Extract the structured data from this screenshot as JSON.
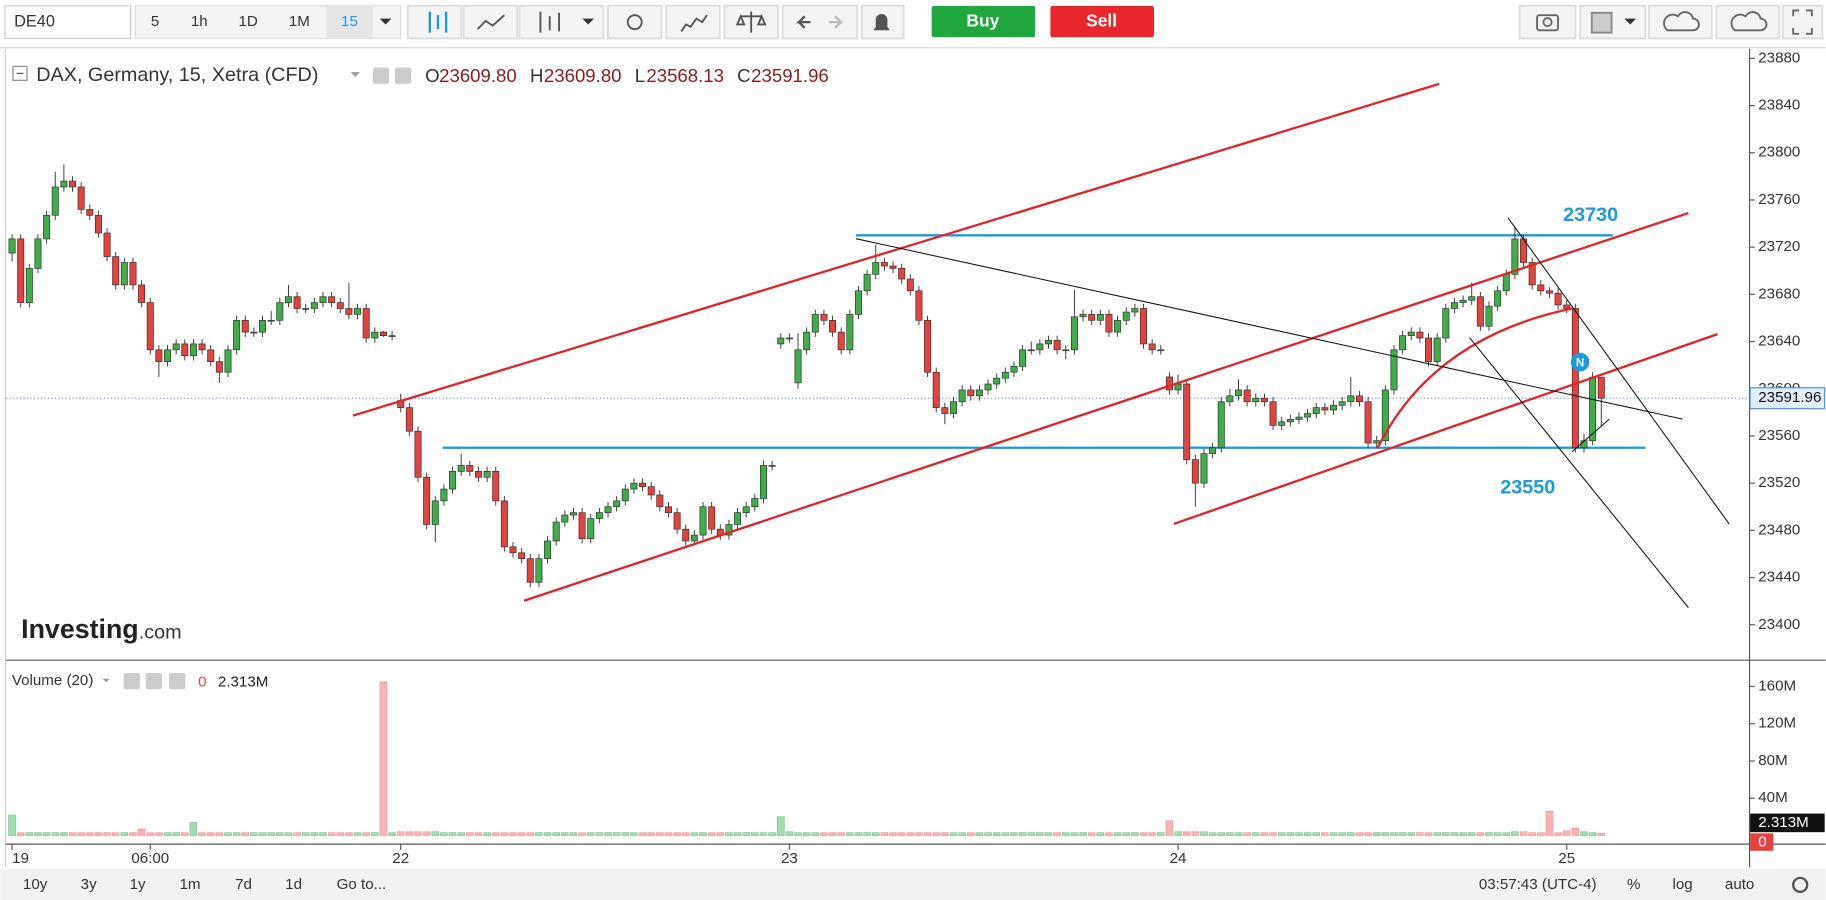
{
  "toolbar": {
    "symbol": "DE40",
    "intervals": [
      "5",
      "1h",
      "1D",
      "1M",
      "15"
    ],
    "buy": "Buy",
    "sell": "Sell"
  },
  "legend": {
    "title": "DAX, Germany, 15, Xetra (CFD)",
    "o_label": "O",
    "o": "23609.80",
    "h_label": "H",
    "h": "23609.80",
    "l_label": "L",
    "l": "23568.13",
    "c_label": "C",
    "c": "23591.96"
  },
  "watermark": {
    "brand": "Investing",
    "suffix": ".com"
  },
  "volume_legend": {
    "title": "Volume (20)",
    "value_zero": "0"
  },
  "footer": {
    "ranges": [
      "10y",
      "3y",
      "1y",
      "1m",
      "7d",
      "1d"
    ],
    "goto": "Go to...",
    "clock": "03:57:43 (UTC-4)",
    "options": [
      "%",
      "log",
      "auto"
    ]
  },
  "chart_data": {
    "type": "candlestick",
    "up_color": "#3fae49",
    "down_color": "#e5423f",
    "volume_up_color": "#a5dcb3",
    "volume_down_color": "#f7b4b4",
    "level_color": "#1a9be0",
    "xlim": [
      -0.7,
      201.1
    ],
    "xticks": [
      {
        "value": 0,
        "label": "19"
      },
      {
        "value": 16,
        "label": "06:00"
      },
      {
        "value": 45,
        "label": "22"
      },
      {
        "value": 90,
        "label": "23"
      },
      {
        "value": 135,
        "label": "24"
      },
      {
        "value": 180,
        "label": "25"
      }
    ],
    "ylim": [
      23371,
      23888
    ],
    "yticks": [
      23400,
      23440,
      23480,
      23520,
      23560,
      23600,
      23640,
      23680,
      23720,
      23760,
      23800,
      23840,
      23880
    ],
    "vlim": [
      -8,
      187
    ],
    "vticks": [
      {
        "value": 40,
        "label": "40M"
      },
      {
        "value": 80,
        "label": "80M"
      },
      {
        "value": 120,
        "label": "120M"
      },
      {
        "value": 160,
        "label": "160M"
      }
    ],
    "last_price": {
      "value": 23591.96,
      "label": "23591.96"
    },
    "last_volume": {
      "value": 2.313,
      "label": "2.313M"
    },
    "levels": [
      23730,
      23550
    ],
    "candles": [
      [
        23715,
        23731,
        23708,
        23727
      ],
      [
        23727,
        23731,
        23669,
        23673
      ],
      [
        23673,
        23706,
        23669,
        23702
      ],
      [
        23702,
        23731,
        23698,
        23727
      ],
      [
        23727,
        23751,
        23723,
        23747
      ],
      [
        23747,
        23784,
        23743,
        23771
      ],
      [
        23771,
        23790,
        23767,
        23776
      ],
      [
        23776,
        23780,
        23767,
        23771
      ],
      [
        23771,
        23775,
        23748,
        23752
      ],
      [
        23752,
        23756,
        23743,
        23747
      ],
      [
        23747,
        23751,
        23728,
        23732
      ],
      [
        23732,
        23736,
        23708,
        23712
      ],
      [
        23712,
        23716,
        23684,
        23688
      ],
      [
        23688,
        23711,
        23684,
        23707
      ],
      [
        23707,
        23711,
        23684,
        23688
      ],
      [
        23688,
        23692,
        23669,
        23673
      ],
      [
        23673,
        23677,
        23629,
        23633
      ],
      [
        23633,
        23637,
        23610,
        23623
      ],
      [
        23623,
        23637,
        23619,
        23633
      ],
      [
        23633,
        23642,
        23629,
        23638
      ],
      [
        23638,
        23642,
        23624,
        23628
      ],
      [
        23628,
        23642,
        23624,
        23638
      ],
      [
        23638,
        23642,
        23629,
        23633
      ],
      [
        23633,
        23637,
        23619,
        23623
      ],
      [
        23623,
        23627,
        23605,
        23614
      ],
      [
        23614,
        23637,
        23610,
        23633
      ],
      [
        23633,
        23662,
        23629,
        23658
      ],
      [
        23658,
        23662,
        23644,
        23648
      ],
      [
        23648,
        23652,
        23644,
        23648
      ],
      [
        23648,
        23662,
        23644,
        23658
      ],
      [
        23658,
        23666,
        23654,
        23658
      ],
      [
        23658,
        23677,
        23654,
        23673
      ],
      [
        23673,
        23688,
        23669,
        23678
      ],
      [
        23678,
        23682,
        23664,
        23668
      ],
      [
        23668,
        23672,
        23664,
        23668
      ],
      [
        23668,
        23677,
        23664,
        23673
      ],
      [
        23673,
        23682,
        23669,
        23678
      ],
      [
        23678,
        23682,
        23669,
        23673
      ],
      [
        23673,
        23677,
        23664,
        23668
      ],
      [
        23668,
        23690,
        23659,
        23663
      ],
      [
        23663,
        23672,
        23659,
        23668
      ],
      [
        23668,
        23672,
        23639,
        23643
      ],
      [
        23643,
        23652,
        23639,
        23648
      ],
      [
        23648,
        23649,
        23644,
        23645
      ],
      [
        23645,
        23649,
        23641,
        23645
      ],
      [
        23590,
        23596,
        23580,
        23584
      ],
      [
        23584,
        23588,
        23560,
        23564
      ],
      [
        23564,
        23568,
        23521,
        23525
      ],
      [
        23525,
        23529,
        23481,
        23485
      ],
      [
        23485,
        23509,
        23470,
        23505
      ],
      [
        23505,
        23519,
        23501,
        23515
      ],
      [
        23515,
        23534,
        23511,
        23530
      ],
      [
        23530,
        23545,
        23526,
        23535
      ],
      [
        23535,
        23539,
        23526,
        23530
      ],
      [
        23530,
        23534,
        23521,
        23525
      ],
      [
        23525,
        23534,
        23521,
        23530
      ],
      [
        23530,
        23534,
        23501,
        23505
      ],
      [
        23505,
        23509,
        23462,
        23466
      ],
      [
        23466,
        23470,
        23457,
        23461
      ],
      [
        23461,
        23465,
        23452,
        23456
      ],
      [
        23456,
        23460,
        23432,
        23436
      ],
      [
        23436,
        23460,
        23432,
        23456
      ],
      [
        23456,
        23475,
        23452,
        23471
      ],
      [
        23471,
        23491,
        23467,
        23487
      ],
      [
        23487,
        23497,
        23483,
        23493
      ],
      [
        23493,
        23499,
        23489,
        23495
      ],
      [
        23495,
        23499,
        23469,
        23473
      ],
      [
        23473,
        23494,
        23469,
        23490
      ],
      [
        23490,
        23499,
        23486,
        23495
      ],
      [
        23495,
        23504,
        23491,
        23500
      ],
      [
        23500,
        23509,
        23496,
        23505
      ],
      [
        23505,
        23519,
        23501,
        23515
      ],
      [
        23515,
        23524,
        23511,
        23520
      ],
      [
        23520,
        23524,
        23513,
        23517
      ],
      [
        23517,
        23521,
        23506,
        23510
      ],
      [
        23510,
        23514,
        23496,
        23500
      ],
      [
        23500,
        23504,
        23491,
        23495
      ],
      [
        23495,
        23499,
        23477,
        23481
      ],
      [
        23481,
        23485,
        23467,
        23471
      ],
      [
        23471,
        23480,
        23467,
        23476
      ],
      [
        23476,
        23504,
        23472,
        23500
      ],
      [
        23500,
        23504,
        23477,
        23481
      ],
      [
        23481,
        23485,
        23472,
        23476
      ],
      [
        23476,
        23489,
        23472,
        23485
      ],
      [
        23485,
        23499,
        23481,
        23495
      ],
      [
        23495,
        23504,
        23491,
        23500
      ],
      [
        23500,
        23511,
        23496,
        23507
      ],
      [
        23507,
        23539,
        23503,
        23535
      ],
      [
        23535,
        23539,
        23531,
        23535
      ],
      [
        23638,
        23647,
        23634,
        23643
      ],
      [
        23643,
        23647,
        23639,
        23643
      ],
      [
        23605,
        23647,
        23600,
        23633
      ],
      [
        23633,
        23652,
        23629,
        23648
      ],
      [
        23648,
        23667,
        23644,
        23663
      ],
      [
        23663,
        23667,
        23654,
        23658
      ],
      [
        23658,
        23662,
        23644,
        23648
      ],
      [
        23648,
        23652,
        23629,
        23633
      ],
      [
        23633,
        23667,
        23629,
        23663
      ],
      [
        23663,
        23687,
        23659,
        23683
      ],
      [
        23683,
        23701,
        23679,
        23697
      ],
      [
        23697,
        23722,
        23693,
        23707
      ],
      [
        23707,
        23711,
        23700,
        23704
      ],
      [
        23704,
        23708,
        23698,
        23702
      ],
      [
        23702,
        23706,
        23689,
        23693
      ],
      [
        23693,
        23697,
        23679,
        23683
      ],
      [
        23683,
        23687,
        23654,
        23658
      ],
      [
        23658,
        23662,
        23610,
        23614
      ],
      [
        23614,
        23618,
        23580,
        23584
      ],
      [
        23584,
        23588,
        23570,
        23579
      ],
      [
        23579,
        23593,
        23575,
        23589
      ],
      [
        23589,
        23603,
        23585,
        23599
      ],
      [
        23599,
        23603,
        23590,
        23594
      ],
      [
        23594,
        23603,
        23590,
        23599
      ],
      [
        23599,
        23608,
        23595,
        23604
      ],
      [
        23604,
        23613,
        23600,
        23609
      ],
      [
        23609,
        23618,
        23605,
        23614
      ],
      [
        23614,
        23623,
        23610,
        23619
      ],
      [
        23619,
        23637,
        23615,
        23633
      ],
      [
        23633,
        23640,
        23629,
        23633
      ],
      [
        23633,
        23642,
        23629,
        23638
      ],
      [
        23638,
        23645,
        23634,
        23641
      ],
      [
        23641,
        23645,
        23629,
        23633
      ],
      [
        23633,
        23637,
        23625,
        23633
      ],
      [
        23633,
        23684,
        23629,
        23661
      ],
      [
        23661,
        23667,
        23657,
        23663
      ],
      [
        23663,
        23667,
        23654,
        23658
      ],
      [
        23658,
        23667,
        23654,
        23663
      ],
      [
        23663,
        23667,
        23644,
        23648
      ],
      [
        23648,
        23662,
        23644,
        23658
      ],
      [
        23658,
        23669,
        23654,
        23665
      ],
      [
        23665,
        23672,
        23661,
        23668
      ],
      [
        23668,
        23672,
        23634,
        23638
      ],
      [
        23638,
        23642,
        23629,
        23633
      ],
      [
        23633,
        23637,
        23629,
        23633
      ],
      [
        23610,
        23614,
        23595,
        23599
      ],
      [
        23599,
        23612,
        23595,
        23604
      ],
      [
        23604,
        23608,
        23536,
        23540
      ],
      [
        23540,
        23544,
        23500,
        23520
      ],
      [
        23520,
        23549,
        23516,
        23545
      ],
      [
        23545,
        23554,
        23541,
        23550
      ],
      [
        23550,
        23593,
        23546,
        23589
      ],
      [
        23589,
        23600,
        23585,
        23594
      ],
      [
        23594,
        23608,
        23590,
        23599
      ],
      [
        23599,
        23603,
        23585,
        23589
      ],
      [
        23589,
        23596,
        23585,
        23592
      ],
      [
        23592,
        23596,
        23585,
        23589
      ],
      [
        23589,
        23593,
        23565,
        23569
      ],
      [
        23569,
        23576,
        23565,
        23572
      ],
      [
        23572,
        23578,
        23568,
        23574
      ],
      [
        23574,
        23580,
        23570,
        23576
      ],
      [
        23576,
        23583,
        23572,
        23579
      ],
      [
        23579,
        23588,
        23575,
        23584
      ],
      [
        23584,
        23588,
        23578,
        23582
      ],
      [
        23582,
        23590,
        23578,
        23586
      ],
      [
        23586,
        23593,
        23582,
        23589
      ],
      [
        23589,
        23610,
        23585,
        23594
      ],
      [
        23594,
        23598,
        23585,
        23589
      ],
      [
        23589,
        23593,
        23550,
        23554
      ],
      [
        23554,
        23560,
        23550,
        23556
      ],
      [
        23556,
        23603,
        23552,
        23599
      ],
      [
        23599,
        23637,
        23595,
        23633
      ],
      [
        23633,
        23649,
        23629,
        23645
      ],
      [
        23645,
        23652,
        23641,
        23648
      ],
      [
        23648,
        23652,
        23639,
        23643
      ],
      [
        23643,
        23647,
        23619,
        23623
      ],
      [
        23623,
        23647,
        23619,
        23643
      ],
      [
        23643,
        23672,
        23639,
        23668
      ],
      [
        23668,
        23677,
        23664,
        23673
      ],
      [
        23673,
        23679,
        23669,
        23675
      ],
      [
        23675,
        23690,
        23671,
        23678
      ],
      [
        23678,
        23682,
        23649,
        23653
      ],
      [
        23653,
        23674,
        23649,
        23670
      ],
      [
        23670,
        23687,
        23666,
        23683
      ],
      [
        23683,
        23701,
        23679,
        23697
      ],
      [
        23697,
        23737,
        23693,
        23727
      ],
      [
        23727,
        23731,
        23703,
        23707
      ],
      [
        23707,
        23711,
        23684,
        23688
      ],
      [
        23688,
        23692,
        23679,
        23683
      ],
      [
        23683,
        23686,
        23677,
        23681
      ],
      [
        23681,
        23685,
        23667,
        23671
      ],
      [
        23671,
        23675,
        23664,
        23668
      ],
      [
        23668,
        23672,
        23546,
        23550
      ],
      [
        23550,
        23562,
        23546,
        23556
      ],
      [
        23556,
        23614,
        23552,
        23609.8
      ],
      [
        23609.8,
        23609.8,
        23568.13,
        23591.96
      ]
    ],
    "volumes": [
      22,
      3,
      3,
      3,
      3,
      3,
      3,
      3,
      3,
      3,
      3,
      3,
      3,
      3,
      3,
      7,
      3,
      3,
      3,
      3,
      3,
      14,
      3,
      3,
      3,
      3,
      3,
      3,
      3,
      3,
      3,
      3,
      3,
      3,
      3,
      3,
      3,
      3,
      3,
      3,
      3,
      3,
      3,
      165,
      3,
      4,
      4,
      4,
      4,
      4,
      3,
      3,
      3,
      3,
      3,
      3,
      3,
      3,
      3,
      3,
      3,
      3,
      3,
      3,
      3,
      3,
      3,
      3,
      3,
      3,
      3,
      3,
      3,
      3,
      3,
      3,
      3,
      3,
      3,
      3,
      3,
      3,
      3,
      3,
      3,
      3,
      3,
      3,
      3,
      20,
      4,
      3,
      3,
      3,
      3,
      3,
      3,
      3,
      3,
      3,
      3,
      3,
      3,
      3,
      3,
      3,
      3,
      3,
      3,
      3,
      3,
      3,
      3,
      3,
      3,
      3,
      3,
      3,
      3,
      3,
      3,
      3,
      3,
      3,
      3,
      3,
      3,
      3,
      3,
      3,
      3,
      3,
      3,
      3,
      16,
      4,
      4,
      4,
      4,
      3,
      3,
      3,
      3,
      3,
      3,
      3,
      3,
      3,
      3,
      3,
      3,
      3,
      3,
      3,
      3,
      3,
      3,
      3,
      3,
      3,
      3,
      3,
      3,
      3,
      3,
      3,
      3,
      3,
      3,
      3,
      3,
      3,
      3,
      3,
      4,
      4,
      3,
      3,
      26,
      3,
      5,
      8,
      4,
      3,
      2.313
    ]
  }
}
